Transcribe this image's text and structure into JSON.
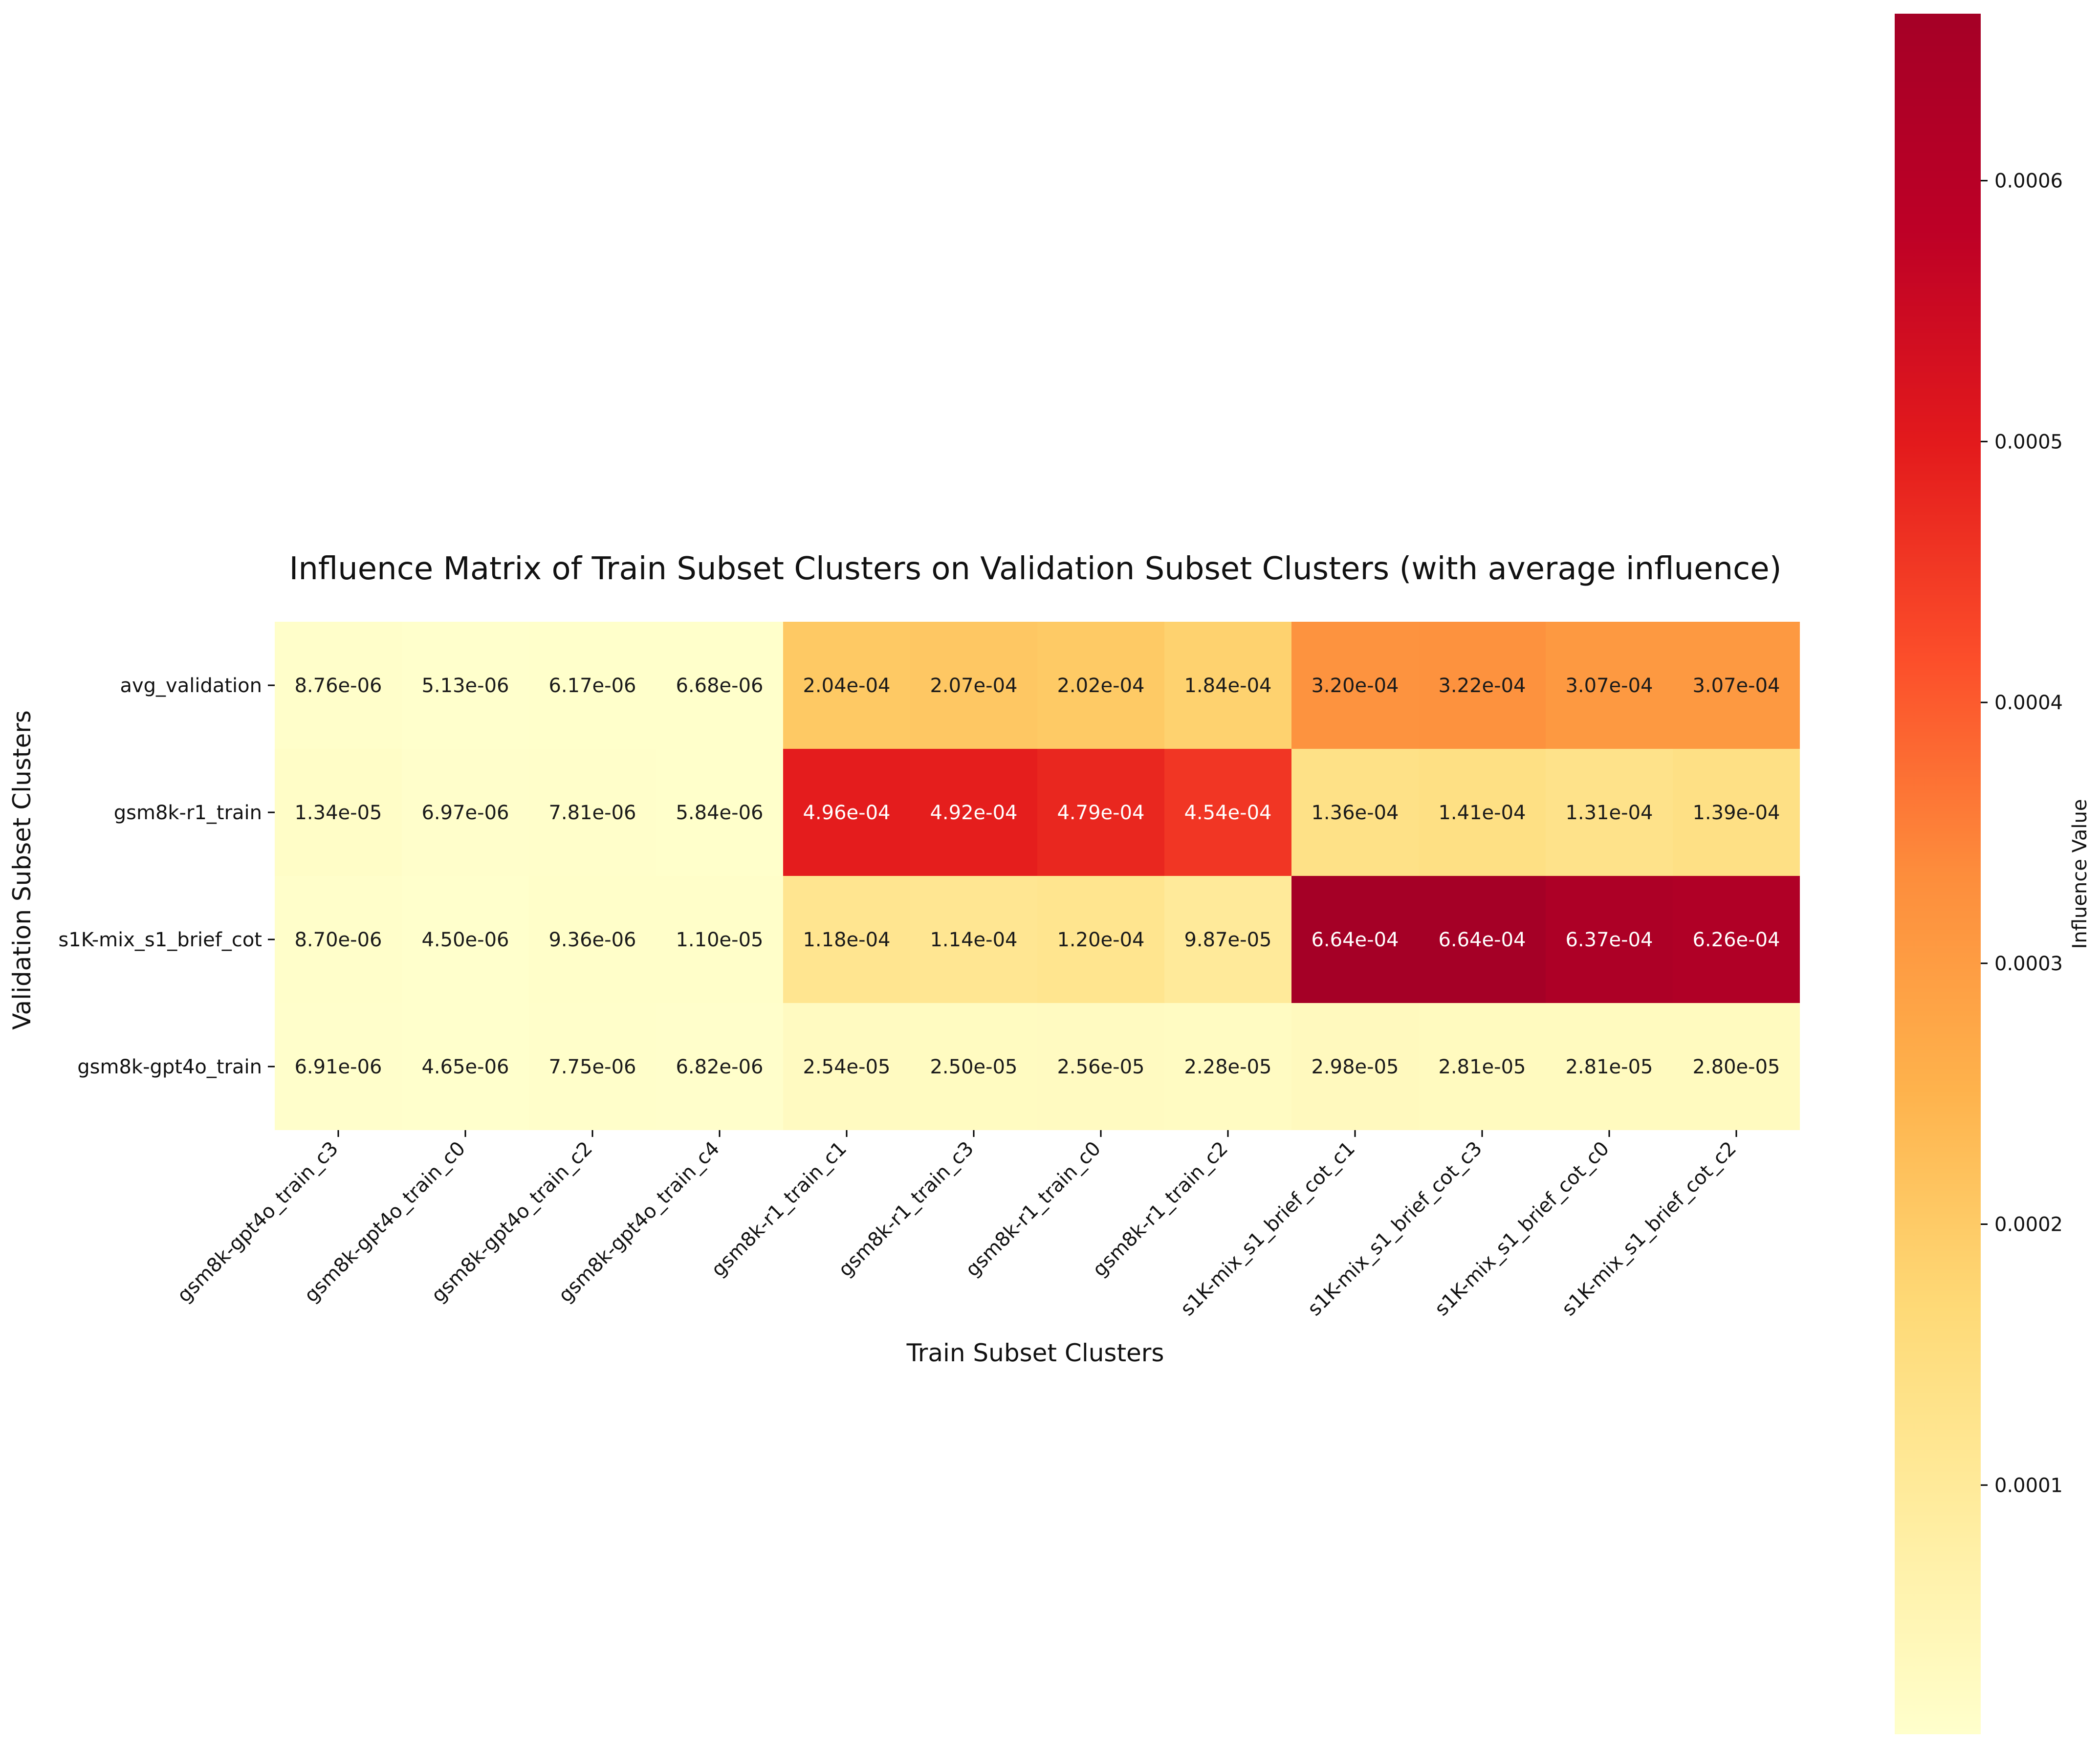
{
  "chart_data": {
    "type": "heatmap",
    "title": "Influence Matrix of Train Subset Clusters on Validation Subset Clusters (with average influence)",
    "xlabel": "Train Subset Clusters",
    "ylabel": "Validation Subset Clusters",
    "colorbar_label": "Influence Value",
    "colormap": "YlOrRd",
    "vmin": 4.5e-06,
    "vmax": 0.000664,
    "colorbar_ticks": [
      "0.0001",
      "0.0002",
      "0.0003",
      "0.0004",
      "0.0005",
      "0.0006"
    ],
    "colorbar_tick_values": [
      0.0001,
      0.0002,
      0.0003,
      0.0004,
      0.0005,
      0.0006
    ],
    "columns": [
      "gsm8k-gpt4o_train_c3",
      "gsm8k-gpt4o_train_c0",
      "gsm8k-gpt4o_train_c2",
      "gsm8k-gpt4o_train_c4",
      "gsm8k-r1_train_c1",
      "gsm8k-r1_train_c3",
      "gsm8k-r1_train_c0",
      "gsm8k-r1_train_c2",
      "s1K-mix_s1_brief_cot_c1",
      "s1K-mix_s1_brief_cot_c3",
      "s1K-mix_s1_brief_cot_c0",
      "s1K-mix_s1_brief_cot_c2"
    ],
    "rows": [
      "avg_validation",
      "gsm8k-r1_train",
      "s1K-mix_s1_brief_cot",
      "gsm8k-gpt4o_train"
    ],
    "values": [
      [
        8.76e-06,
        5.13e-06,
        6.17e-06,
        6.68e-06,
        0.000204,
        0.000207,
        0.000202,
        0.000184,
        0.00032,
        0.000322,
        0.000307,
        0.000307
      ],
      [
        1.34e-05,
        6.97e-06,
        7.81e-06,
        5.84e-06,
        0.000496,
        0.000492,
        0.000479,
        0.000454,
        0.000136,
        0.000141,
        0.000131,
        0.000139
      ],
      [
        8.7e-06,
        4.5e-06,
        9.36e-06,
        1.1e-05,
        0.000118,
        0.000114,
        0.00012,
        9.87e-05,
        0.000664,
        0.000664,
        0.000637,
        0.000626
      ],
      [
        6.91e-06,
        4.65e-06,
        7.75e-06,
        6.82e-06,
        2.54e-05,
        2.5e-05,
        2.56e-05,
        2.28e-05,
        2.98e-05,
        2.81e-05,
        2.81e-05,
        2.8e-05
      ]
    ],
    "labels": [
      [
        "8.76e-06",
        "5.13e-06",
        "6.17e-06",
        "6.68e-06",
        "2.04e-04",
        "2.07e-04",
        "2.02e-04",
        "1.84e-04",
        "3.20e-04",
        "3.22e-04",
        "3.07e-04",
        "3.07e-04"
      ],
      [
        "1.34e-05",
        "6.97e-06",
        "7.81e-06",
        "5.84e-06",
        "4.96e-04",
        "4.92e-04",
        "4.79e-04",
        "4.54e-04",
        "1.36e-04",
        "1.41e-04",
        "1.31e-04",
        "1.39e-04"
      ],
      [
        "8.70e-06",
        "4.50e-06",
        "9.36e-06",
        "1.10e-05",
        "1.18e-04",
        "1.14e-04",
        "1.20e-04",
        "9.87e-05",
        "6.64e-04",
        "6.64e-04",
        "6.37e-04",
        "6.26e-04"
      ],
      [
        "6.91e-06",
        "4.65e-06",
        "7.75e-06",
        "6.82e-06",
        "2.54e-05",
        "2.50e-05",
        "2.56e-05",
        "2.28e-05",
        "2.98e-05",
        "2.81e-05",
        "2.81e-05",
        "2.80e-05"
      ]
    ]
  }
}
